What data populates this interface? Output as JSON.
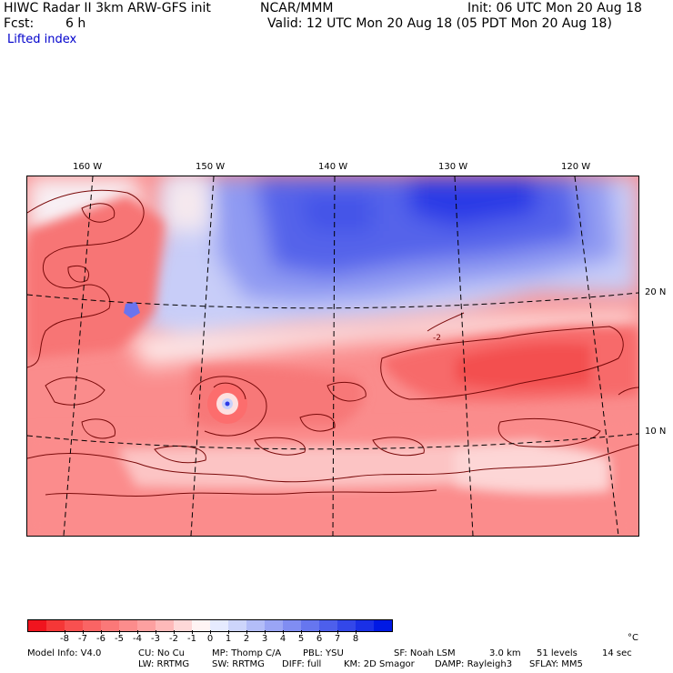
{
  "header": {
    "model_title": "HIWC Radar II 3km ARW-GFS init",
    "org": "NCAR/MMM",
    "init": "Init: 06 UTC Mon 20 Aug 18",
    "fcst_label": "Fcst:",
    "fcst_value": "6 h",
    "valid": "Valid: 12 UTC Mon 20 Aug 18 (05 PDT Mon 20 Aug 18)",
    "field": "Lifted index"
  },
  "map": {
    "lon_labels": [
      "160 W",
      "150 W",
      "140 W",
      "130 W",
      "120 W"
    ],
    "lat_labels": [
      "20 N",
      "10 N"
    ],
    "contour_label": "-2",
    "colors": {
      "land_outline": "#7a0a0a",
      "grid": "#000000"
    }
  },
  "colorbar": {
    "colors": [
      "#f0141e",
      "#f53737",
      "#f85050",
      "#fa6464",
      "#fb7878",
      "#fc8c8c",
      "#fda0a0",
      "#feb9b9",
      "#fed8d8",
      "#fff4f4",
      "#e6ebff",
      "#cdd5fb",
      "#b3bdf8",
      "#9aa5f5",
      "#808df2",
      "#6676ef",
      "#4d5fec",
      "#3347e9",
      "#1a30e6",
      "#0019e4"
    ],
    "labels": [
      "-8",
      "-7",
      "-6",
      "-5",
      "-4",
      "-3",
      "-2",
      "-1",
      "0",
      "1",
      "2",
      "3",
      "4",
      "5",
      "6",
      "7",
      "8"
    ],
    "unit": "°C"
  },
  "footer": {
    "line1": [
      "Model Info: V4.0",
      "CU: No Cu",
      "MP: Thomp C/A",
      "PBL: YSU",
      "SF: Noah LSM",
      "3.0 km",
      "51 levels",
      "14 sec"
    ],
    "line2": [
      "LW: RRTMG",
      "SW: RRTMG",
      "DIFF: full",
      "KM: 2D Smagor",
      "DAMP: Rayleigh3",
      "SFLAY: MM5"
    ]
  }
}
